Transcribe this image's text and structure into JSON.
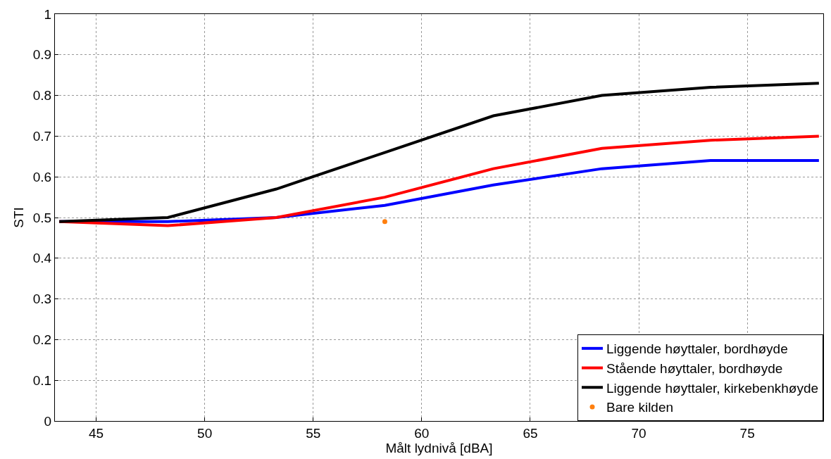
{
  "chart_data": {
    "type": "line",
    "xlabel": "Målt lydnivå [dBA]",
    "ylabel": "STI",
    "x": [
      43.3,
      48.3,
      53.3,
      58.3,
      63.3,
      68.3,
      73.3,
      78.3
    ],
    "series": [
      {
        "name": "Liggende høyttaler, bordhøyde",
        "color": "#0000ff",
        "values": [
          0.49,
          0.49,
          0.5,
          0.53,
          0.58,
          0.62,
          0.64,
          0.64
        ]
      },
      {
        "name": "Stående høyttaler, bordhøyde",
        "color": "#ff0000",
        "values": [
          0.49,
          0.48,
          0.5,
          0.55,
          0.62,
          0.67,
          0.69,
          0.7
        ]
      },
      {
        "name": "Liggende høyttaler, kirkebenkhøyde",
        "color": "#000000",
        "values": [
          0.49,
          0.5,
          0.57,
          0.66,
          0.75,
          0.8,
          0.82,
          0.83
        ]
      },
      {
        "name": "Bare kilden",
        "type": "scatter",
        "color": "#ff7f0e",
        "x": [
          58.3
        ],
        "values": [
          0.49
        ],
        "marker": "circle"
      }
    ],
    "xlim": [
      43.1,
      78.5
    ],
    "xticks": [
      45,
      50,
      55,
      60,
      65,
      70,
      75
    ],
    "ylim": [
      0,
      1
    ],
    "yticks": [
      0,
      0.1,
      0.2,
      0.3,
      0.4,
      0.5,
      0.6,
      0.7,
      0.8,
      0.9,
      1
    ],
    "grid": true,
    "legend": "bottom right",
    "line_style": "solid",
    "marker": "none"
  }
}
